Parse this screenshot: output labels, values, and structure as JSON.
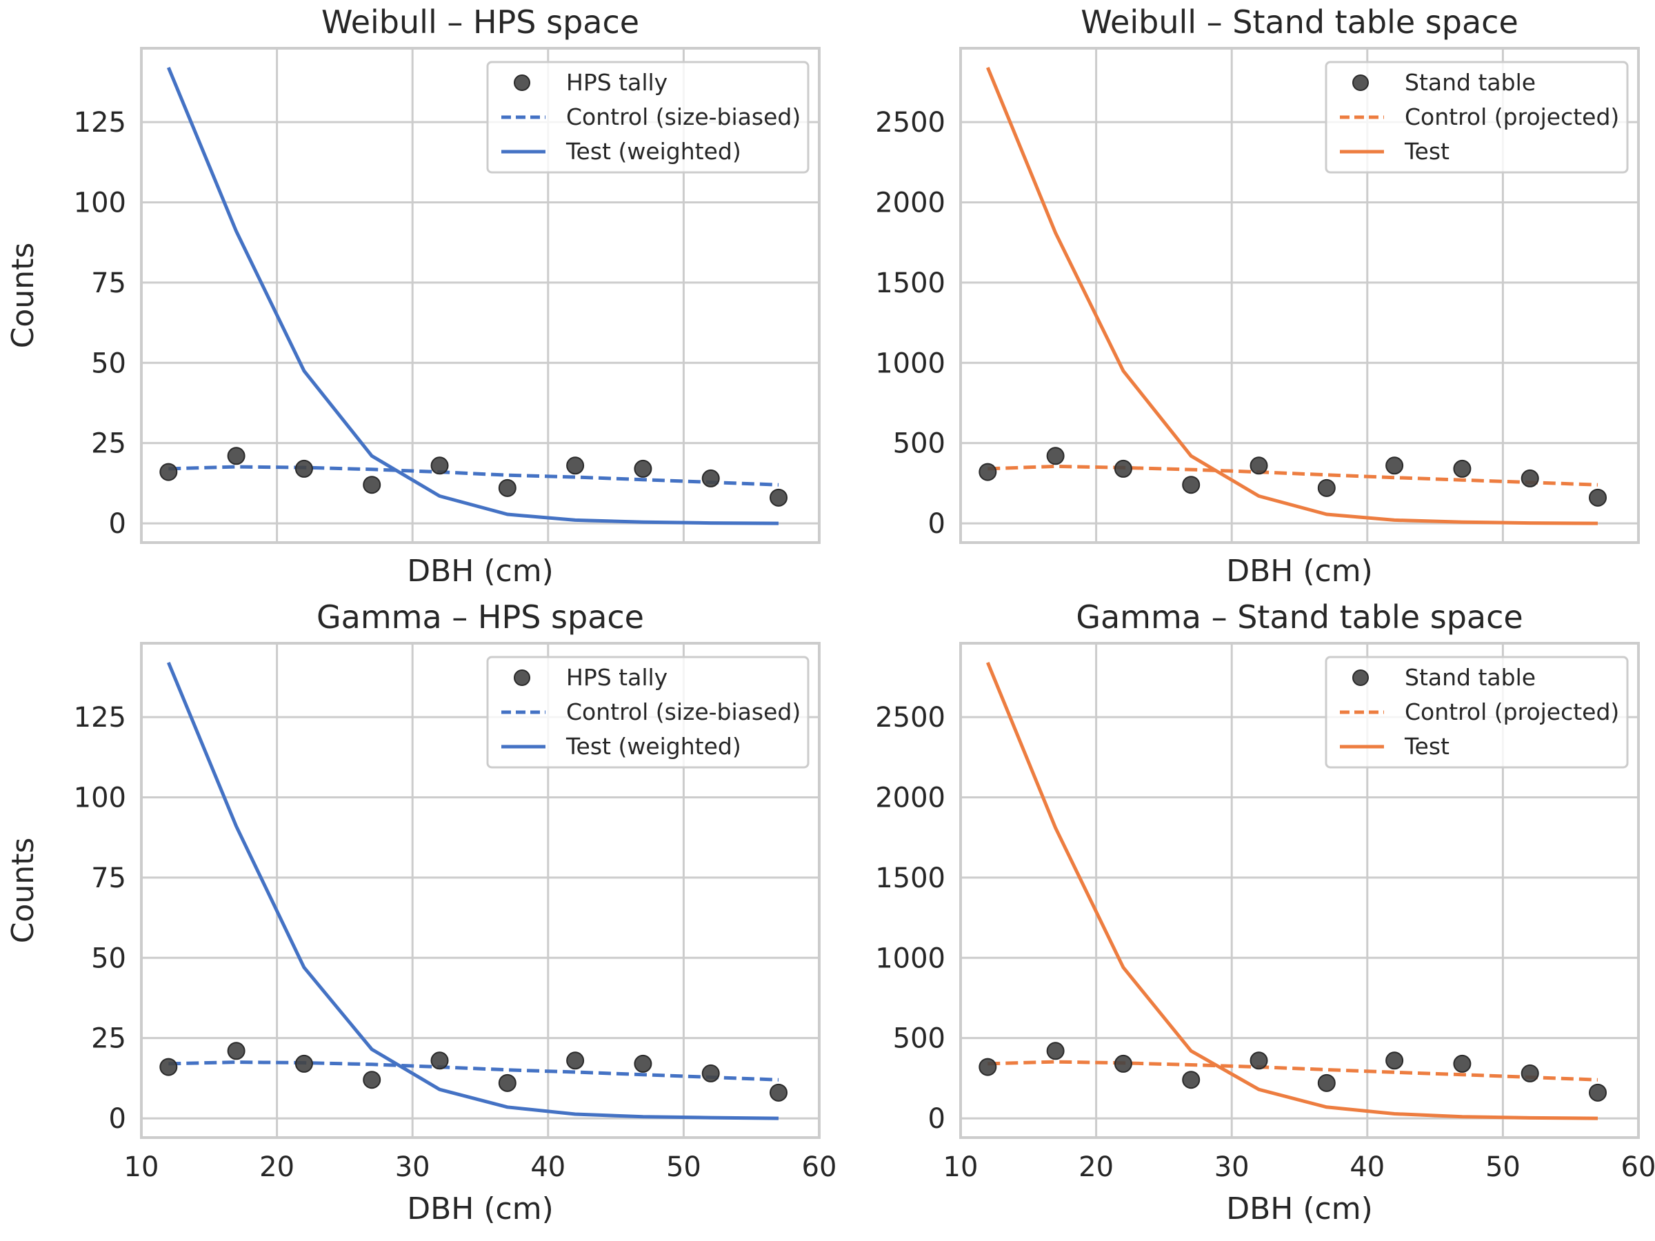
{
  "colors": {
    "hps": "#4472c4",
    "stand": "#ed7d40",
    "marker": "#444444",
    "grid": "#cccccc",
    "text": "#262626"
  },
  "chart_data": [
    {
      "type": "line",
      "title": "Weibull – HPS space",
      "xlabel": "DBH (cm)",
      "ylabel": "Counts",
      "xlim": [
        10,
        60
      ],
      "ylim": [
        -6,
        148
      ],
      "xticks": [
        10,
        20,
        30,
        40,
        50,
        60
      ],
      "yticks": [
        0,
        25,
        50,
        75,
        100,
        125
      ],
      "show_xticklabels": false,
      "show_ylabel": true,
      "grid": true,
      "legend_position": "top-right",
      "series": [
        {
          "name": "HPS tally",
          "kind": "scatter",
          "color": "#444444",
          "x": [
            12,
            17,
            22,
            27,
            32,
            37,
            42,
            47,
            52,
            57
          ],
          "y": [
            16,
            21,
            17,
            12,
            18,
            11,
            18,
            17,
            14,
            8
          ]
        },
        {
          "name": "Control (size-biased)",
          "kind": "dashed",
          "color": "#4472c4",
          "x": [
            12,
            17,
            22,
            27,
            32,
            37,
            42,
            47,
            52,
            57
          ],
          "y": [
            17,
            17.6,
            17.4,
            16.8,
            16,
            15,
            14.4,
            13.6,
            12.8,
            12
          ]
        },
        {
          "name": "Test (weighted)",
          "kind": "solid",
          "color": "#4472c4",
          "x": [
            12,
            17,
            22,
            27,
            32,
            37,
            42,
            47,
            52,
            57
          ],
          "y": [
            142,
            91,
            47.5,
            21,
            8.5,
            2.8,
            1,
            0.4,
            0.1,
            0
          ]
        }
      ]
    },
    {
      "type": "line",
      "title": "Weibull – Stand table space",
      "xlabel": "DBH (cm)",
      "ylabel": "",
      "xlim": [
        10,
        60
      ],
      "ylim": [
        -120,
        2960
      ],
      "xticks": [
        10,
        20,
        30,
        40,
        50,
        60
      ],
      "yticks": [
        0,
        500,
        1000,
        1500,
        2000,
        2500
      ],
      "show_xticklabels": false,
      "show_ylabel": false,
      "grid": true,
      "legend_position": "top-right",
      "series": [
        {
          "name": "Stand table",
          "kind": "scatter",
          "color": "#444444",
          "x": [
            12,
            17,
            22,
            27,
            32,
            37,
            42,
            47,
            52,
            57
          ],
          "y": [
            320,
            420,
            340,
            240,
            360,
            220,
            360,
            340,
            280,
            160
          ]
        },
        {
          "name": "Control (projected)",
          "kind": "dashed",
          "color": "#ed7d40",
          "x": [
            12,
            17,
            22,
            27,
            32,
            37,
            42,
            47,
            52,
            57
          ],
          "y": [
            340,
            355,
            347,
            335,
            320,
            302,
            285,
            270,
            255,
            240
          ]
        },
        {
          "name": "Test",
          "kind": "solid",
          "color": "#ed7d40",
          "x": [
            12,
            17,
            22,
            27,
            32,
            37,
            42,
            47,
            52,
            57
          ],
          "y": [
            2840,
            1810,
            950,
            420,
            170,
            56,
            20,
            8,
            2,
            0
          ]
        }
      ]
    },
    {
      "type": "line",
      "title": "Gamma – HPS space",
      "xlabel": "DBH (cm)",
      "ylabel": "Counts",
      "xlim": [
        10,
        60
      ],
      "ylim": [
        -6,
        148
      ],
      "xticks": [
        10,
        20,
        30,
        40,
        50,
        60
      ],
      "yticks": [
        0,
        25,
        50,
        75,
        100,
        125
      ],
      "show_xticklabels": true,
      "show_ylabel": true,
      "grid": true,
      "legend_position": "top-right",
      "series": [
        {
          "name": "HPS tally",
          "kind": "scatter",
          "color": "#444444",
          "x": [
            12,
            17,
            22,
            27,
            32,
            37,
            42,
            47,
            52,
            57
          ],
          "y": [
            16,
            21,
            17,
            12,
            18,
            11,
            18,
            17,
            14,
            8
          ]
        },
        {
          "name": "Control (size-biased)",
          "kind": "dashed",
          "color": "#4472c4",
          "x": [
            12,
            17,
            22,
            27,
            32,
            37,
            42,
            47,
            52,
            57
          ],
          "y": [
            17,
            17.5,
            17.3,
            16.8,
            16,
            15.1,
            14.4,
            13.6,
            12.8,
            12
          ]
        },
        {
          "name": "Test (weighted)",
          "kind": "solid",
          "color": "#4472c4",
          "x": [
            12,
            17,
            22,
            27,
            32,
            37,
            42,
            47,
            52,
            57
          ],
          "y": [
            142,
            91,
            47,
            21.5,
            9,
            3.5,
            1.3,
            0.5,
            0.2,
            0
          ]
        }
      ]
    },
    {
      "type": "line",
      "title": "Gamma – Stand table space",
      "xlabel": "DBH (cm)",
      "ylabel": "",
      "xlim": [
        10,
        60
      ],
      "ylim": [
        -120,
        2960
      ],
      "xticks": [
        10,
        20,
        30,
        40,
        50,
        60
      ],
      "yticks": [
        0,
        500,
        1000,
        1500,
        2000,
        2500
      ],
      "show_xticklabels": true,
      "show_ylabel": false,
      "grid": true,
      "legend_position": "top-right",
      "series": [
        {
          "name": "Stand table",
          "kind": "scatter",
          "color": "#444444",
          "x": [
            12,
            17,
            22,
            27,
            32,
            37,
            42,
            47,
            52,
            57
          ],
          "y": [
            320,
            420,
            340,
            240,
            360,
            220,
            360,
            340,
            280,
            160
          ]
        },
        {
          "name": "Control (projected)",
          "kind": "dashed",
          "color": "#ed7d40",
          "x": [
            12,
            17,
            22,
            27,
            32,
            37,
            42,
            47,
            52,
            57
          ],
          "y": [
            340,
            352,
            345,
            333,
            320,
            303,
            287,
            272,
            256,
            240
          ]
        },
        {
          "name": "Test",
          "kind": "solid",
          "color": "#ed7d40",
          "x": [
            12,
            17,
            22,
            27,
            32,
            37,
            42,
            47,
            52,
            57
          ],
          "y": [
            2840,
            1810,
            940,
            420,
            180,
            70,
            28,
            10,
            3,
            0
          ]
        }
      ]
    }
  ]
}
